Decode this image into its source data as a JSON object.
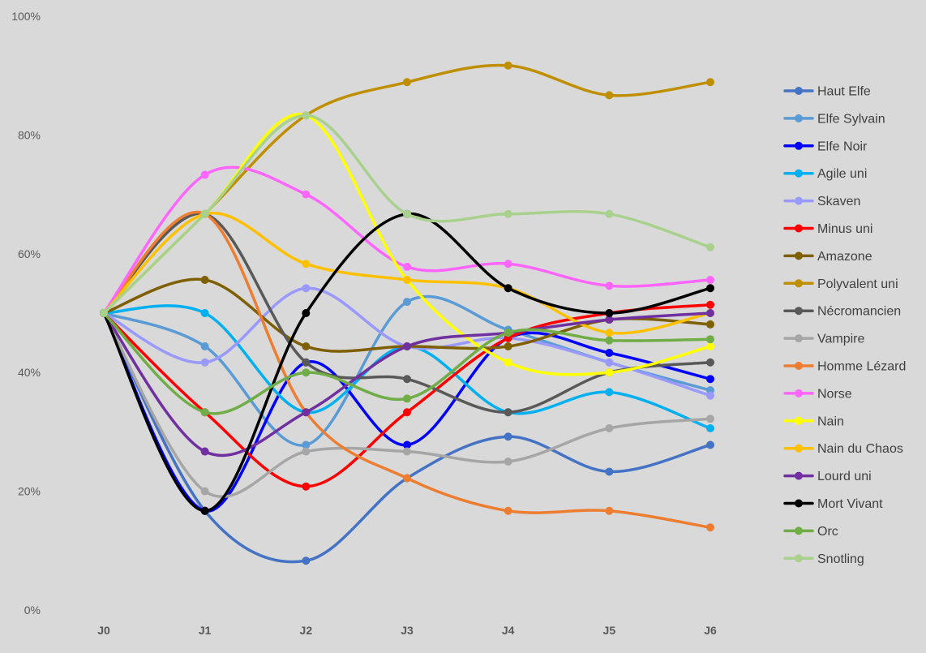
{
  "chart_data": {
    "type": "line",
    "title": "",
    "xlabel": "",
    "ylabel": "",
    "x": [
      "J0",
      "J1",
      "J2",
      "J3",
      "J4",
      "J5",
      "J6"
    ],
    "ylim": [
      0,
      100
    ],
    "yticks": [
      0,
      20,
      40,
      60,
      80,
      100
    ],
    "ytick_labels": [
      "0%",
      "20%",
      "40%",
      "60%",
      "80%",
      "100%"
    ],
    "smooth": true,
    "grid": false,
    "legend_position": "right",
    "series": [
      {
        "name": "Haut Elfe",
        "color": "#4472c4",
        "values": [
          50,
          16.7,
          8.3,
          22.2,
          29.2,
          23.3,
          27.8
        ]
      },
      {
        "name": "Elfe Sylvain",
        "color": "#5b9bd5",
        "values": [
          50,
          44.4,
          27.8,
          51.9,
          47.2,
          41.7,
          37
        ]
      },
      {
        "name": "Elfe Noir",
        "color": "#0000ff",
        "values": [
          50,
          16.7,
          41.7,
          27.8,
          45.8,
          43.3,
          38.9
        ]
      },
      {
        "name": "Agile uni",
        "color": "#00b0f0",
        "values": [
          50,
          50,
          33.3,
          44.4,
          33.3,
          36.7,
          30.6
        ]
      },
      {
        "name": "Skaven",
        "color": "#9999ff",
        "values": [
          50,
          41.7,
          54.2,
          44.4,
          45.8,
          41.7,
          36.1
        ]
      },
      {
        "name": "Minus uni",
        "color": "#ff0000",
        "values": [
          50,
          33.3,
          20.8,
          33.3,
          45.8,
          50,
          51.4
        ]
      },
      {
        "name": "Amazone",
        "color": "#7f6000",
        "values": [
          50,
          55.6,
          44.4,
          44.4,
          44.4,
          48.9,
          48.1
        ]
      },
      {
        "name": "Polyvalent uni",
        "color": "#bf8f00",
        "values": [
          50,
          66.7,
          83.3,
          88.9,
          91.7,
          86.7,
          88.9
        ]
      },
      {
        "name": "Nécromancien",
        "color": "#595959",
        "values": [
          50,
          66.7,
          41.7,
          38.9,
          33.3,
          40,
          41.7
        ]
      },
      {
        "name": "Vampire",
        "color": "#a6a6a6",
        "values": [
          50,
          20,
          26.7,
          26.7,
          25,
          30.6,
          32.2
        ]
      },
      {
        "name": "Homme Lézard",
        "color": "#ed7d31",
        "values": [
          50,
          66.7,
          33.3,
          22.2,
          16.7,
          16.7,
          13.9
        ]
      },
      {
        "name": "Norse",
        "color": "#ff66ff",
        "values": [
          50,
          73.3,
          70,
          57.8,
          58.3,
          54.6,
          55.6
        ]
      },
      {
        "name": "Nain",
        "color": "#ffff00",
        "values": [
          50,
          66.7,
          83.3,
          55.6,
          41.7,
          40,
          44.4
        ]
      },
      {
        "name": "Nain du Chaos",
        "color": "#ffc000",
        "values": [
          50,
          66.7,
          58.3,
          55.6,
          54.2,
          46.7,
          50
        ]
      },
      {
        "name": "Lourd uni",
        "color": "#7030a0",
        "values": [
          50,
          26.7,
          33.3,
          44.4,
          46.7,
          48.9,
          50
        ]
      },
      {
        "name": "Mort Vivant",
        "color": "#000000",
        "values": [
          50,
          16.7,
          50,
          66.7,
          54.2,
          50,
          54.2
        ]
      },
      {
        "name": "Orc",
        "color": "#70ad47",
        "values": [
          50,
          33.3,
          40,
          35.6,
          46.7,
          45.4,
          45.6
        ]
      },
      {
        "name": "Snotling",
        "color": "#a9d18e",
        "values": [
          50,
          66.7,
          83.3,
          66.7,
          66.7,
          66.7,
          61.1
        ]
      }
    ]
  }
}
